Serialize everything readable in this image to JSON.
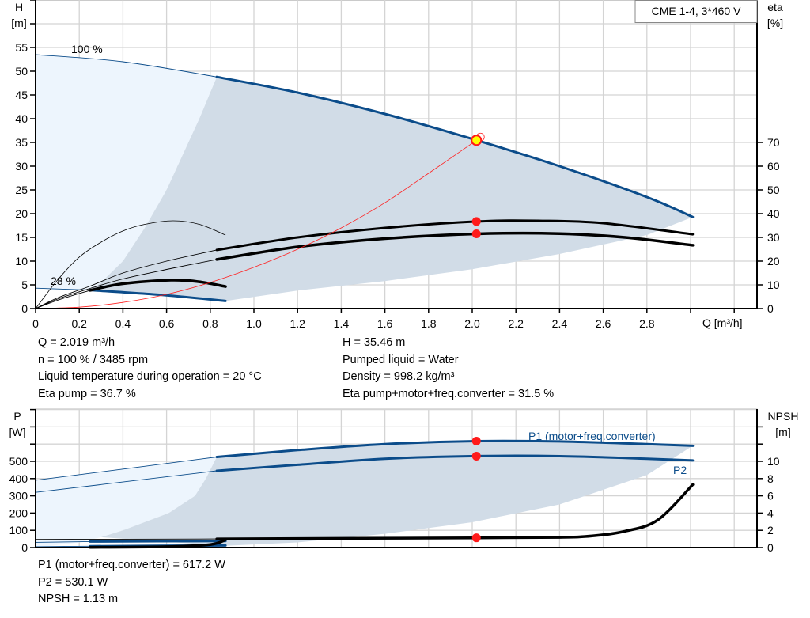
{
  "chart_data": [
    {
      "type": "line",
      "title": "",
      "xlabel": "Q [m³/h]",
      "ylabel": "H\n[m]",
      "ylabel_top": "H",
      "ylabel_unit": "[m]",
      "y2label_top": "eta",
      "y2label_unit": "[%]",
      "legend": "CME 1-4, 3*460 V",
      "legend_placement": "top-right",
      "grid": true,
      "xlim": [
        0,
        3.3
      ],
      "ylim": [
        0,
        65
      ],
      "y2lim": [
        0,
        130
      ],
      "x_ticks": [
        "0",
        "0.2",
        "0.4",
        "0.6",
        "0.8",
        "1.0",
        "1.2",
        "1.4",
        "1.6",
        "1.8",
        "2.0",
        "2.2",
        "2.4",
        "2.6",
        "2.8"
      ],
      "y_ticks": [
        "0",
        "5",
        "10",
        "15",
        "20",
        "25",
        "30",
        "35",
        "40",
        "45",
        "50",
        "55"
      ],
      "y2_ticks": [
        "0",
        "10",
        "20",
        "30",
        "40",
        "50",
        "60",
        "70"
      ],
      "annotations": {
        "speed_max": "100 %",
        "speed_min": "28 %"
      },
      "colors": {
        "pump_curve": "#0b4c8a",
        "efficiency": "#000000",
        "system": "#ff2020",
        "area_light": "#edf5fd",
        "area_dark": "#d1dce7",
        "point": "#ff1a1a",
        "duty_point": "#ffff00"
      },
      "series": [
        {
          "key": "h_100",
          "axis": "H",
          "thick_from": 0.83,
          "x": [
            0,
            0.4,
            0.83,
            1.2,
            1.6,
            2.02,
            2.4,
            2.8,
            3.01
          ],
          "y": [
            53.5,
            52,
            48.8,
            45.5,
            41,
            35.46,
            30,
            23.5,
            19.3
          ]
        },
        {
          "key": "h_28",
          "axis": "H",
          "thick_from": 0.25,
          "x": [
            0,
            0.25,
            0.6,
            0.87
          ],
          "y": [
            4.3,
            3.9,
            2.8,
            1.6
          ]
        },
        {
          "key": "eta_pump_100",
          "axis": "eta",
          "thick_from": 0.83,
          "x": [
            0,
            0.1,
            0.25,
            0.4,
            0.6,
            0.83,
            1.2,
            1.6,
            2.02,
            2.3,
            2.6,
            3.01
          ],
          "y": [
            0,
            4.5,
            9.5,
            15,
            20,
            24.7,
            30,
            34,
            36.7,
            37,
            36,
            31.3
          ]
        },
        {
          "key": "eta_total_100",
          "axis": "eta",
          "thick_from": 0.83,
          "x": [
            0,
            0.1,
            0.25,
            0.4,
            0.6,
            0.83,
            1.2,
            1.6,
            2.02,
            2.4,
            2.7,
            3.01
          ],
          "y": [
            0,
            4,
            8.5,
            12.5,
            16.5,
            20.7,
            26,
            29.5,
            31.5,
            31.6,
            30,
            26.7
          ]
        },
        {
          "key": "eta_pump_28",
          "axis": "eta",
          "thick_from": 99,
          "x": [
            0,
            0.1,
            0.2,
            0.3,
            0.4,
            0.5,
            0.63,
            0.75,
            0.87
          ],
          "y": [
            0,
            12,
            21.7,
            28,
            32.7,
            35.5,
            37,
            35.5,
            31
          ]
        },
        {
          "key": "eta_total_28",
          "axis": "eta",
          "thick_from": 0.25,
          "x": [
            0,
            0.1,
            0.25,
            0.4,
            0.62,
            0.75,
            0.87
          ],
          "y": [
            0,
            3.5,
            7.7,
            10.5,
            12,
            11.3,
            9.3
          ]
        },
        {
          "key": "system",
          "axis": "H",
          "thick_from": 99,
          "x": [
            0,
            0.2,
            0.4,
            0.6,
            0.8,
            1.0,
            1.2,
            1.4,
            1.6,
            1.8,
            2.02
          ],
          "y": [
            0,
            0.3,
            1.3,
            3,
            5.5,
            8.7,
            12.5,
            17,
            22.3,
            28.5,
            35.46
          ]
        }
      ],
      "area_dark": {
        "x": [
          0.83,
          1.2,
          1.6,
          2.02,
          2.4,
          2.8,
          3.01,
          2.8,
          2.4,
          2.0,
          1.6,
          1.2,
          0.87,
          0.6,
          0.25,
          0.3,
          0.4,
          0.5,
          0.6,
          0.67,
          0.75
        ],
        "y": [
          48.8,
          45.5,
          41,
          35.46,
          30,
          23.5,
          19.3,
          15.5,
          11.5,
          8.3,
          5.8,
          3.8,
          1.6,
          2.8,
          3.9,
          5.5,
          10,
          17,
          25,
          32,
          40
        ]
      },
      "area_light": {
        "x": [
          0,
          0.4,
          0.83,
          0.75,
          0.67,
          0.6,
          0.5,
          0.4,
          0.3,
          0.25,
          0
        ],
        "y": [
          53.5,
          52,
          48.8,
          40,
          32,
          25,
          17,
          10,
          5.5,
          3.9,
          4.3
        ]
      },
      "points": [
        {
          "axis": "H",
          "x": 2.019,
          "y": 35.46,
          "style": "duty"
        },
        {
          "axis": "eta",
          "x": 2.019,
          "y": 36.7,
          "style": "dot"
        },
        {
          "axis": "eta",
          "x": 2.019,
          "y": 31.5,
          "style": "dot"
        }
      ]
    },
    {
      "type": "line",
      "title": "",
      "ylabel_top": "P",
      "ylabel_unit": "[W]",
      "y2label_top": "NPSH",
      "y2label_unit": "[m]",
      "grid": true,
      "xlim": [
        0,
        3.3
      ],
      "ylim": [
        0,
        800
      ],
      "y2lim": [
        0,
        16
      ],
      "y_ticks": [
        "0",
        "100",
        "200",
        "300",
        "400",
        "500"
      ],
      "y2_ticks": [
        "0",
        "2",
        "4",
        "6",
        "8",
        "10"
      ],
      "series": [
        {
          "key": "p1",
          "name": "P1 (motor+freq.converter)",
          "axis": "P",
          "thick_from": 0.83,
          "x": [
            0,
            0.83,
            1.2,
            1.6,
            2.02,
            2.4,
            2.8,
            3.01
          ],
          "y": [
            390,
            525,
            565,
            600,
            617.2,
            615,
            600,
            590
          ]
        },
        {
          "key": "p2",
          "name": "P2",
          "axis": "P",
          "thick_from": 0.83,
          "x": [
            0,
            0.83,
            1.2,
            1.6,
            2.02,
            2.4,
            2.8,
            3.01
          ],
          "y": [
            320,
            445,
            480,
            515,
            530.1,
            530,
            515,
            505
          ]
        },
        {
          "key": "p1_28",
          "axis": "P",
          "thick_from": 0.25,
          "x": [
            0,
            0.25,
            0.87
          ],
          "y": [
            30,
            35,
            38
          ]
        },
        {
          "key": "p2_28",
          "axis": "P",
          "thick_from": 0.25,
          "x": [
            0,
            0.25,
            0.87
          ],
          "y": [
            5,
            8,
            12
          ]
        },
        {
          "key": "npsh_100",
          "axis": "NPSH",
          "thick_from": 0.83,
          "x": [
            0,
            0.83,
            1.5,
            2.02,
            2.4,
            2.55,
            2.7,
            2.85,
            3.01
          ],
          "y": [
            0.95,
            1.0,
            1.07,
            1.13,
            1.18,
            1.35,
            1.9,
            3.2,
            7.3
          ]
        },
        {
          "key": "npsh_28",
          "axis": "NPSH",
          "thick_from": 0.25,
          "x": [
            0,
            0.25,
            0.6,
            0.8,
            0.87
          ],
          "y": [
            0,
            0.02,
            0.1,
            0.35,
            0.9
          ]
        }
      ],
      "area_dark": {
        "x": [
          0.83,
          1.2,
          1.6,
          2.02,
          2.4,
          2.8,
          3.01,
          2.8,
          2.4,
          2.0,
          1.6,
          1.2,
          0.87,
          0.3,
          0.4,
          0.61,
          0.73,
          0.78
        ],
        "y": [
          525,
          565,
          600,
          617.2,
          615,
          600,
          590,
          420,
          250,
          147,
          80,
          30,
          10,
          60,
          100,
          200,
          300,
          400
        ]
      },
      "area_light": {
        "x": [
          0,
          0.83,
          0.78,
          0.73,
          0.61,
          0.4,
          0.3,
          0.2,
          0
        ],
        "y": [
          390,
          525,
          400,
          300,
          200,
          100,
          60,
          30,
          0
        ]
      },
      "points": [
        {
          "axis": "P",
          "x": 2.019,
          "y": 617.2,
          "style": "dot"
        },
        {
          "axis": "P",
          "x": 2.019,
          "y": 530.1,
          "style": "dot"
        },
        {
          "axis": "NPSH",
          "x": 2.019,
          "y": 1.13,
          "style": "dot"
        }
      ]
    }
  ],
  "info_top": {
    "q": "Q = 2.019 m³/h",
    "n": "n = 100 % / 3485 rpm",
    "temp": "Liquid temperature during operation = 20 °C",
    "eta_pump": "Eta pump = 36.7 %",
    "h": "H = 35.46 m",
    "liquid": "Pumped liquid = Water",
    "density": "Density = 998.2 kg/m³",
    "eta_total": "Eta pump+motor+freq.converter = 31.5 %"
  },
  "info_bottom": {
    "p1": "P1 (motor+freq.converter) = 617.2 W",
    "p2": "P2 = 530.1 W",
    "npsh": "NPSH = 1.13 m"
  }
}
